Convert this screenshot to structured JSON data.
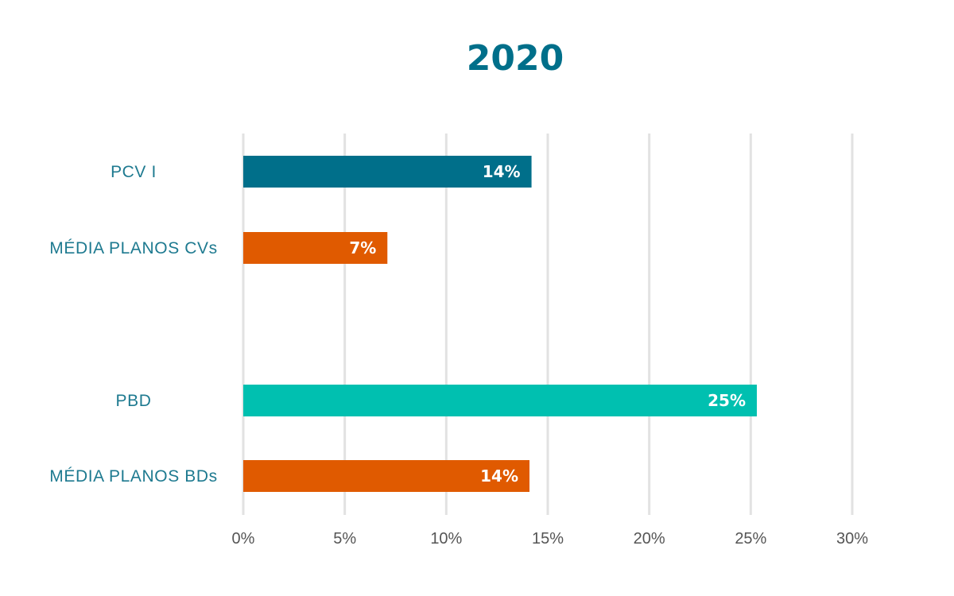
{
  "chart_data": {
    "type": "bar",
    "orientation": "horizontal",
    "title": "2020",
    "categories": [
      "PCV I",
      "MÉDIA PLANOS CVs",
      "PBD",
      "MÉDIA PLANOS BDs"
    ],
    "values": [
      14.2,
      7.1,
      25.3,
      14.1
    ],
    "data_labels": [
      "14%",
      "7%",
      "25%",
      "14%"
    ],
    "bar_colors": [
      "#006f8a",
      "#e05a00",
      "#00c0b0",
      "#e05a00"
    ],
    "xlim": [
      0,
      30
    ],
    "x_ticks": [
      0,
      5,
      10,
      15,
      20,
      25,
      30
    ],
    "x_tick_labels": [
      "0%",
      "5%",
      "10%",
      "15%",
      "20%",
      "25%",
      "30%"
    ],
    "grid": true,
    "legend": "none",
    "xlabel": "",
    "ylabel": ""
  },
  "colors": {
    "title": "#006f8a",
    "category_label": "#1e7a90",
    "tick_label": "#555555",
    "grid": "#e2e2e2"
  }
}
